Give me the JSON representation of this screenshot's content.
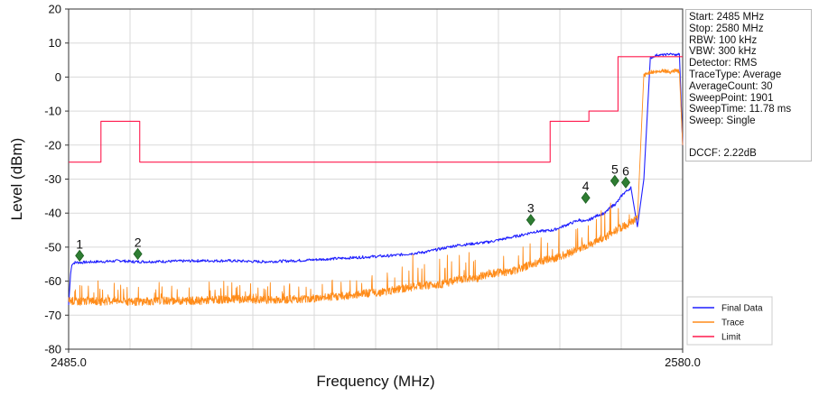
{
  "chart_data": {
    "type": "line",
    "xlabel": "Frequency (MHz)",
    "ylabel": "Level (dBm)",
    "xlim": [
      2485.0,
      2580.0
    ],
    "ylim": [
      -80,
      20
    ],
    "x_tick_labels": [
      "2485.0",
      "2580.0"
    ],
    "y_ticks": [
      20,
      10,
      0,
      -10,
      -20,
      -30,
      -40,
      -50,
      -60,
      -70,
      -80
    ],
    "grid": true,
    "legend_position": "bottom-right",
    "series": [
      {
        "name": "Final Data",
        "color": "#1f1fff",
        "x": [
          2485.0,
          2485.3,
          2485.5,
          2486.0,
          2487.0,
          2489.0,
          2491.0,
          2493.0,
          2495.0,
          2500.0,
          2505.0,
          2510.0,
          2515.0,
          2520.0,
          2525.0,
          2530.0,
          2535.0,
          2540.0,
          2545.0,
          2550.0,
          2555.0,
          2557.0,
          2560.0,
          2562.0,
          2564.0,
          2565.0,
          2566.0,
          2567.0,
          2568.0,
          2568.5,
          2569.0,
          2569.5,
          2570.0,
          2570.5,
          2571.0,
          2572.0,
          2573.0,
          2574.0,
          2575.0,
          2576.0,
          2577.0,
          2578.0,
          2579.0,
          2579.5,
          2580.0
        ],
        "y": [
          -67,
          -58,
          -55,
          -54.5,
          -54.5,
          -54.3,
          -54.2,
          -54.0,
          -54.3,
          -54.2,
          -54.0,
          -54.0,
          -54.3,
          -54.0,
          -53.5,
          -53.0,
          -52.5,
          -51.5,
          -49.5,
          -48.5,
          -46.5,
          -45.5,
          -45.0,
          -43.5,
          -42.0,
          -42.5,
          -41.5,
          -40.5,
          -40.0,
          -39.0,
          -38.0,
          -37.5,
          -36.5,
          -35.0,
          -34.0,
          -32.5,
          -44.0,
          -30.0,
          5.5,
          6.5,
          6.5,
          6.8,
          6.5,
          6.8,
          -20.0
        ]
      },
      {
        "name": "Trace",
        "color": "#ff8c1a",
        "x": [
          2485.0,
          2485.5,
          2486.0,
          2488.0,
          2490.0,
          2492.0,
          2495.0,
          2500.0,
          2505.0,
          2510.0,
          2515.0,
          2520.0,
          2523.0,
          2525.0,
          2528.0,
          2530.0,
          2533.0,
          2535.0,
          2538.0,
          2540.0,
          2543.0,
          2545.0,
          2548.0,
          2550.0,
          2553.0,
          2555.0,
          2557.0,
          2559.0,
          2561.0,
          2563.0,
          2565.0,
          2566.0,
          2567.0,
          2568.0,
          2569.0,
          2570.0,
          2571.0,
          2572.0,
          2573.0,
          2574.0,
          2575.0,
          2576.0,
          2577.0,
          2578.0,
          2579.0,
          2579.5,
          2580.0
        ],
        "y": [
          -66,
          -66,
          -66.3,
          -66,
          -66.2,
          -66.0,
          -66.3,
          -66.0,
          -66.0,
          -65.5,
          -65.8,
          -65.5,
          -65.3,
          -65.0,
          -64.5,
          -64.0,
          -63.5,
          -63.0,
          -62.0,
          -61.5,
          -61.0,
          -60.0,
          -59.5,
          -58.0,
          -57.5,
          -56.5,
          -55.0,
          -54.0,
          -53.0,
          -51.5,
          -50.0,
          -49.5,
          -48.0,
          -47.5,
          -46.0,
          -45.0,
          -44.0,
          -43.0,
          -42.0,
          0.5,
          1.5,
          1.5,
          2.0,
          1.5,
          2.0,
          1.5,
          -20.0
        ]
      },
      {
        "name": "Limit",
        "color": "#ff1a4d",
        "x": [
          2485.0,
          2490.0,
          2490.0,
          2496.0,
          2496.0,
          2559.5,
          2559.5,
          2565.5,
          2565.5,
          2570.0,
          2570.0,
          2580.0
        ],
        "y": [
          -25,
          -25,
          -13,
          -13,
          -25,
          -25,
          -13,
          -13,
          -10,
          -10,
          6.0,
          6.0
        ]
      }
    ],
    "markers": [
      {
        "label": "1",
        "x": 2486.7,
        "y": -52.5
      },
      {
        "label": "2",
        "x": 2495.7,
        "y": -52.0
      },
      {
        "label": "3",
        "x": 2556.5,
        "y": -42.0
      },
      {
        "label": "4",
        "x": 2565.0,
        "y": -35.5
      },
      {
        "label": "5",
        "x": 2569.5,
        "y": -30.5
      },
      {
        "label": "6",
        "x": 2571.2,
        "y": -31.0
      }
    ],
    "marker_color": "#2e7d32"
  },
  "info_box": {
    "lines": [
      "Start: 2485 MHz",
      "Stop: 2580 MHz",
      "RBW: 100 kHz",
      "VBW: 300 kHz",
      "Detector: RMS",
      "TraceType: Average",
      "AverageCount: 30",
      "SweepPoint: 1901",
      "SweepTime: 11.78 ms",
      "Sweep: Single"
    ],
    "dccf": "DCCF: 2.22dB"
  }
}
